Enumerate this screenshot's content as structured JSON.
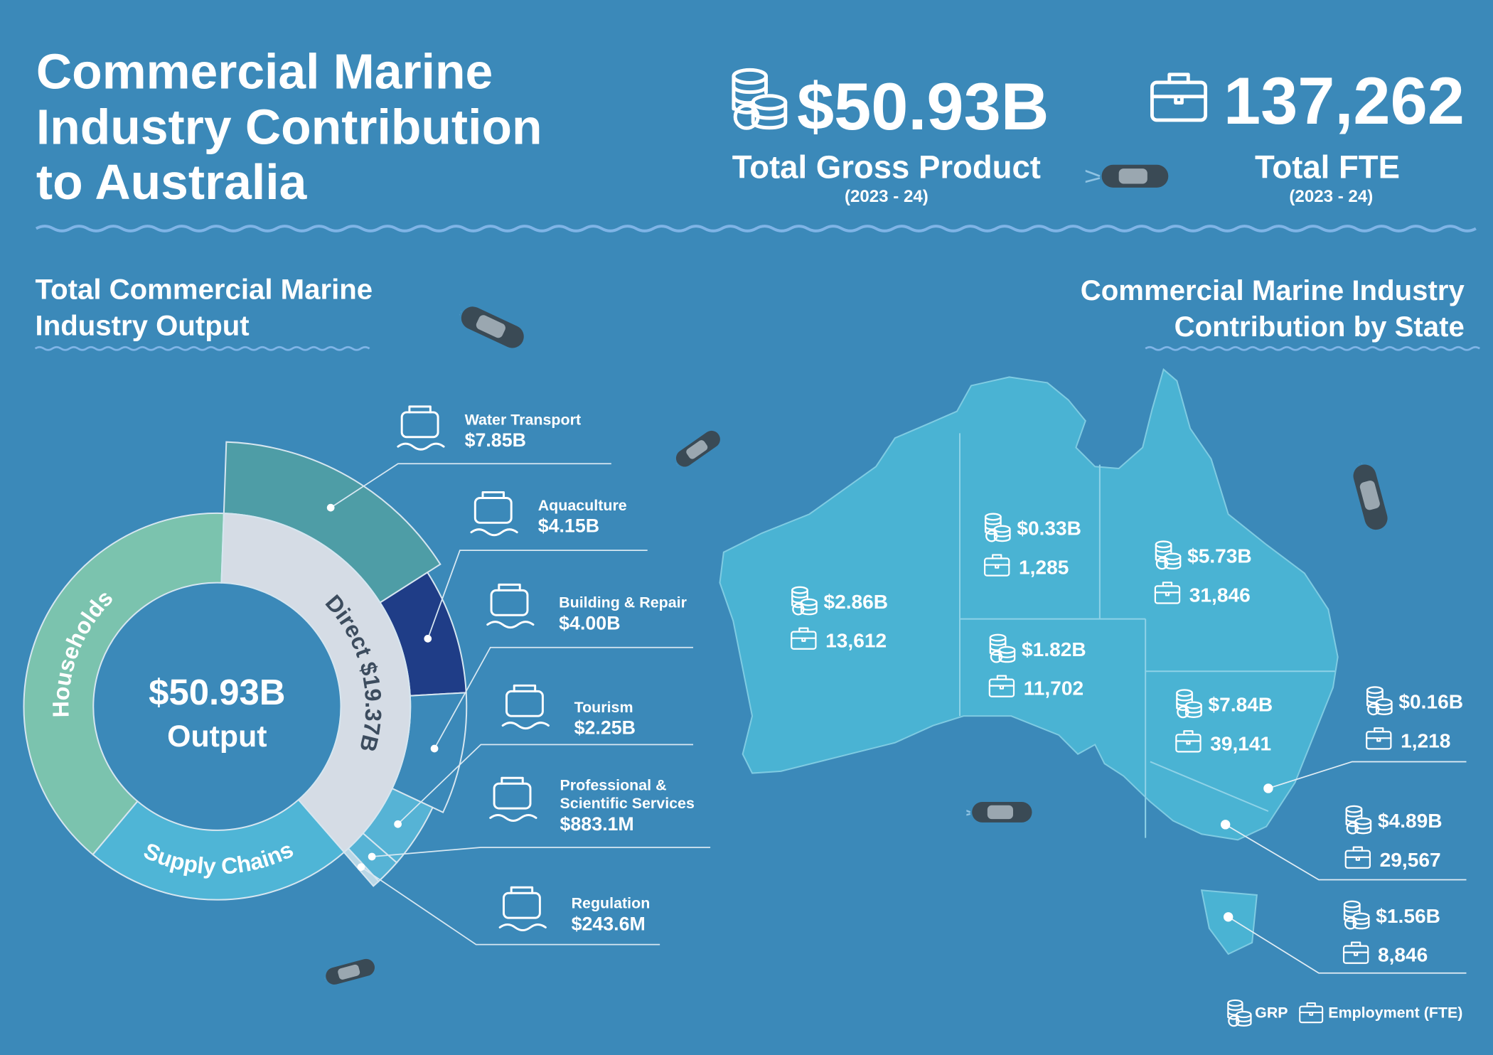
{
  "header": {
    "title": [
      "Commercial Marine",
      "Industry Contribution",
      "to Australia"
    ]
  },
  "kpis": [
    {
      "value": "$50.93B",
      "label": "Total Gross Product",
      "period": "(2023 - 24)"
    },
    {
      "value": "137,262",
      "label": "Total FTE",
      "period": "(2023 - 24)"
    }
  ],
  "chart_data": {
    "type": "donut",
    "title": [
      "Total Commercial Marine",
      "Industry Output"
    ],
    "total": 50.93,
    "total_label": "$50.93B",
    "total_caption": "Output",
    "groups": [
      {
        "name": "Households",
        "color": "#7bc3ae"
      },
      {
        "name": "Direct",
        "value": 19.37,
        "value_label": "$19.37B",
        "color": "#d5dce5"
      },
      {
        "name": "Supply Chains",
        "color": "#4fb5d6"
      }
    ],
    "categories": [
      "Water Transport",
      "Aquaculture",
      "Building & Repair",
      "Tourism",
      "Professional & Scientific Services",
      "Regulation"
    ],
    "values": [
      7.85,
      4.15,
      4.0,
      2.25,
      0.8831,
      0.2436
    ],
    "value_labels": [
      "$7.85B",
      "$4.15B",
      "$4.00B",
      "$2.25B",
      "$883.1M",
      "$243.6M"
    ],
    "colors": [
      "#4e9da6",
      "#1f3d87",
      "#3b89b9",
      "#56b3d5",
      "#56b3d5",
      "#b9d7e6"
    ]
  },
  "states": {
    "title": [
      "Commercial Marine Industry",
      "Contribution by State"
    ],
    "regions": [
      {
        "grp": "$2.86B",
        "fte": "13,612"
      },
      {
        "grp": "$0.33B",
        "fte": "1,285"
      },
      {
        "grp": "$5.73B",
        "fte": "31,846"
      },
      {
        "grp": "$1.82B",
        "fte": "11,702"
      },
      {
        "grp": "$7.84B",
        "fte": "39,141"
      },
      {
        "grp": "$0.16B",
        "fte": "1,218"
      },
      {
        "grp": "$4.89B",
        "fte": "29,567"
      },
      {
        "grp": "$1.56B",
        "fte": "8,846"
      }
    ]
  },
  "legend": {
    "grp": "GRP",
    "fte": "Employment (FTE)"
  }
}
